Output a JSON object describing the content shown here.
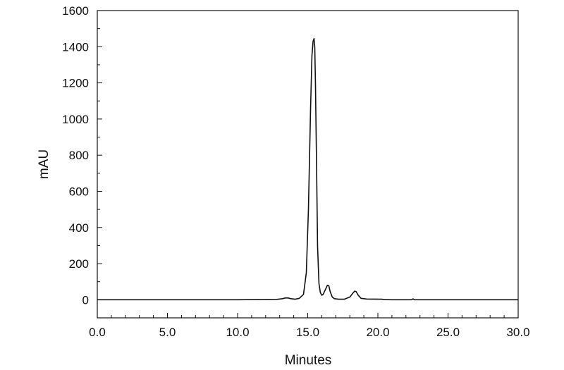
{
  "chart_data": {
    "type": "line",
    "title": "",
    "xlabel": "Minutes",
    "ylabel": "mAU",
    "xlim": [
      0,
      30
    ],
    "ylim": [
      -100,
      1600
    ],
    "x_ticks": [
      0,
      5,
      10,
      15,
      20,
      25,
      30
    ],
    "x_tick_labels": [
      "0.0",
      "5.0",
      "10.0",
      "15.0",
      "20.0",
      "25.0",
      "30.0"
    ],
    "y_ticks": [
      0,
      200,
      400,
      600,
      800,
      1000,
      1200,
      1400,
      1600
    ],
    "y_tick_labels": [
      "0",
      "200",
      "400",
      "600",
      "800",
      "1000",
      "1200",
      "1400",
      "1600"
    ],
    "grid": false,
    "line_color": "#111111",
    "series": [
      {
        "x": [
          0,
          5,
          10,
          12.8,
          13.2,
          13.4,
          13.6,
          13.8,
          14.1,
          14.4,
          14.7,
          14.9,
          15.05,
          15.2,
          15.3,
          15.38,
          15.45,
          15.5,
          15.55,
          15.62,
          15.7,
          15.8,
          15.9,
          16.0,
          16.1,
          16.25,
          16.4,
          16.5,
          16.6,
          16.75,
          16.9,
          17.2,
          17.6,
          18.0,
          18.2,
          18.35,
          18.45,
          18.6,
          18.8,
          19.2,
          20.3,
          20.4,
          21.0,
          22.4,
          22.5,
          22.6,
          25,
          30
        ],
        "y": [
          0,
          0,
          0,
          2,
          6,
          10,
          10,
          6,
          3,
          8,
          30,
          150,
          500,
          1050,
          1350,
          1430,
          1445,
          1400,
          1200,
          800,
          300,
          90,
          40,
          25,
          30,
          55,
          80,
          78,
          45,
          15,
          6,
          3,
          3,
          15,
          35,
          48,
          45,
          25,
          8,
          4,
          3,
          1,
          0,
          0,
          5,
          0,
          0,
          0
        ]
      }
    ]
  }
}
